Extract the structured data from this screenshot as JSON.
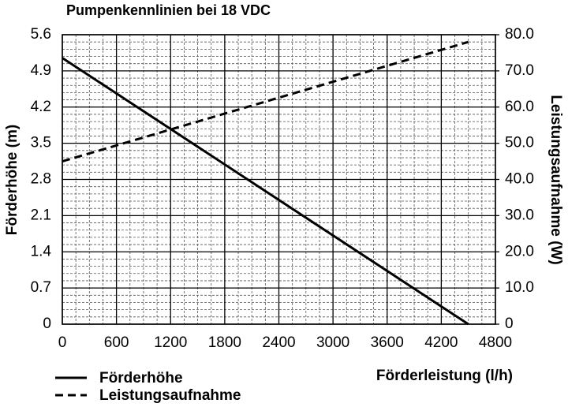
{
  "chart_data": {
    "type": "line",
    "title": "Pumpenkennlinien bei 18 VDC",
    "x_label": "Förderleistung (l/h)",
    "y_label": "Förderhöhe (m)",
    "y2_label": "Leistungsaufnahme (W)",
    "x": [
      0,
      4500
    ],
    "series": [
      {
        "name": "Förderhöhe",
        "color": "#000000",
        "style": "solid",
        "values": [
          5.15,
          0
        ]
      },
      {
        "name": "Leistungsaufnahme",
        "color": "#000000",
        "style": "dashed",
        "axis": "y2",
        "values": [
          45,
          78
        ]
      }
    ],
    "xlim": [
      0,
      4800
    ],
    "xticks": [
      0,
      600,
      1200,
      1800,
      2400,
      3000,
      3600,
      4200,
      4800
    ],
    "ylim": [
      0,
      5.6
    ],
    "yticks": [
      0,
      0.7,
      1.4,
      2.1,
      2.8,
      3.5,
      4.2,
      4.9,
      5.6
    ],
    "y2lim": [
      0,
      80
    ],
    "y2ticks": [
      0,
      {
        "value": 10,
        "label": "10.0"
      },
      {
        "value": 20,
        "label": "20.0"
      },
      {
        "value": 30,
        "label": "30.0"
      },
      {
        "value": 40,
        "label": "40.0"
      },
      {
        "value": 50,
        "label": "50.0"
      },
      {
        "value": 60,
        "label": "60.0"
      },
      {
        "value": 70,
        "label": "70.0"
      },
      {
        "value": 80,
        "label": "80.0"
      }
    ],
    "grid": true,
    "minor_grid": true,
    "legend": "bottom-left"
  }
}
